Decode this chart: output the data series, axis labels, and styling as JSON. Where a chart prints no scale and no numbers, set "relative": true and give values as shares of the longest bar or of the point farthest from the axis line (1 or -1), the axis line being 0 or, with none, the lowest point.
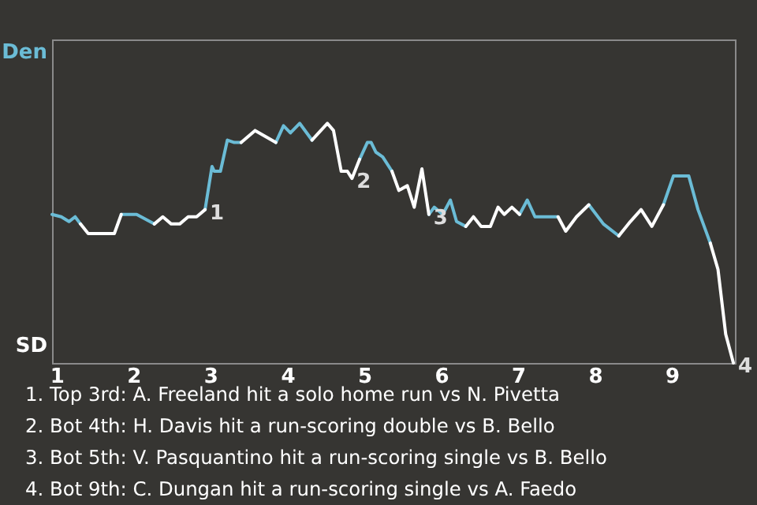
{
  "chart_data": {
    "type": "line",
    "relative": true,
    "x": [
      0.94,
      1.06,
      1.16,
      1.24,
      1.31,
      1.41,
      1.75,
      1.84,
      1.94,
      2.04,
      2.27,
      2.38,
      2.49,
      2.6,
      2.71,
      2.82,
      2.93,
      3.02,
      3.05,
      3.13,
      3.22,
      3.31,
      3.4,
      3.58,
      3.85,
      3.95,
      4.04,
      4.16,
      4.32,
      4.52,
      4.6,
      4.7,
      4.78,
      4.84,
      4.94,
      5.04,
      5.09,
      5.15,
      5.24,
      5.36,
      5.45,
      5.56,
      5.65,
      5.75,
      5.84,
      5.91,
      6.02,
      6.12,
      6.2,
      6.32,
      6.42,
      6.52,
      6.64,
      6.74,
      6.82,
      6.92,
      7.02,
      7.12,
      7.22,
      7.52,
      7.62,
      7.76,
      7.92,
      8.11,
      8.31,
      8.46,
      8.6,
      8.74,
      8.89,
      9.02,
      9.22,
      9.34,
      9.5,
      9.6,
      9.7,
      9.8
    ],
    "xlim": [
      0.94,
      9.82
    ],
    "xticks": [
      1,
      2,
      3,
      4,
      5,
      6,
      7,
      8,
      9
    ],
    "series": [
      {
        "name": "Den",
        "color": "#6bbcd6",
        "values": [
          0.62,
          0.61,
          0.59,
          0.61,
          0.58,
          null,
          null,
          0.62,
          0.62,
          0.62,
          0.58,
          null,
          null,
          null,
          null,
          null,
          0.64,
          0.82,
          0.8,
          0.8,
          0.93,
          0.92,
          0.92,
          null,
          0.92,
          0.99,
          0.96,
          1,
          0.93,
          null,
          null,
          null,
          null,
          null,
          0.85,
          0.92,
          0.92,
          0.88,
          0.86,
          0.8,
          null,
          null,
          null,
          null,
          0.62,
          0.65,
          0.62,
          0.68,
          0.59,
          0.57,
          null,
          null,
          null,
          null,
          null,
          null,
          0.62,
          0.68,
          0.61,
          0.61,
          null,
          null,
          0.66,
          0.58,
          0.53,
          null,
          null,
          null,
          0.66,
          0.78,
          0.78,
          0.64,
          0.5,
          null,
          null,
          null
        ]
      },
      {
        "name": "SD",
        "color": "#ffffff",
        "values": [
          null,
          null,
          null,
          null,
          0.58,
          0.54,
          0.54,
          0.62,
          null,
          null,
          0.58,
          0.61,
          0.58,
          0.58,
          0.61,
          0.61,
          0.64,
          null,
          null,
          null,
          null,
          null,
          0.92,
          0.97,
          0.92,
          null,
          null,
          null,
          0.93,
          1,
          0.97,
          0.8,
          0.8,
          0.77,
          0.85,
          null,
          null,
          null,
          null,
          0.8,
          0.72,
          0.74,
          0.65,
          0.81,
          0.62,
          null,
          null,
          null,
          null,
          0.57,
          0.61,
          0.57,
          0.57,
          0.65,
          0.62,
          0.65,
          0.62,
          null,
          null,
          0.61,
          0.55,
          0.61,
          0.66,
          null,
          0.53,
          0.59,
          0.64,
          0.57,
          0.66,
          null,
          null,
          null,
          0.5,
          0.39,
          0.12,
          0
        ]
      }
    ],
    "annotations": [
      {
        "text": "1",
        "x": 2.93,
        "y": 0.64
      },
      {
        "text": "2",
        "x": 4.84,
        "y": 0.77
      },
      {
        "text": "3",
        "x": 5.84,
        "y": 0.62
      },
      {
        "text": "4",
        "x": 9.8,
        "y": 0
      },
      "1. Top 3rd: A. Freeland hit a solo home run vs N. Pivetta",
      "2. Bot 4th: H. Davis hit a run-scoring double vs B. Bello",
      "3. Bot 5th: V. Pasquantino hit a run-scoring single vs B. Bello",
      "4. Bot 9th: C. Dungan hit a run-scoring single vs A. Faedo"
    ]
  }
}
